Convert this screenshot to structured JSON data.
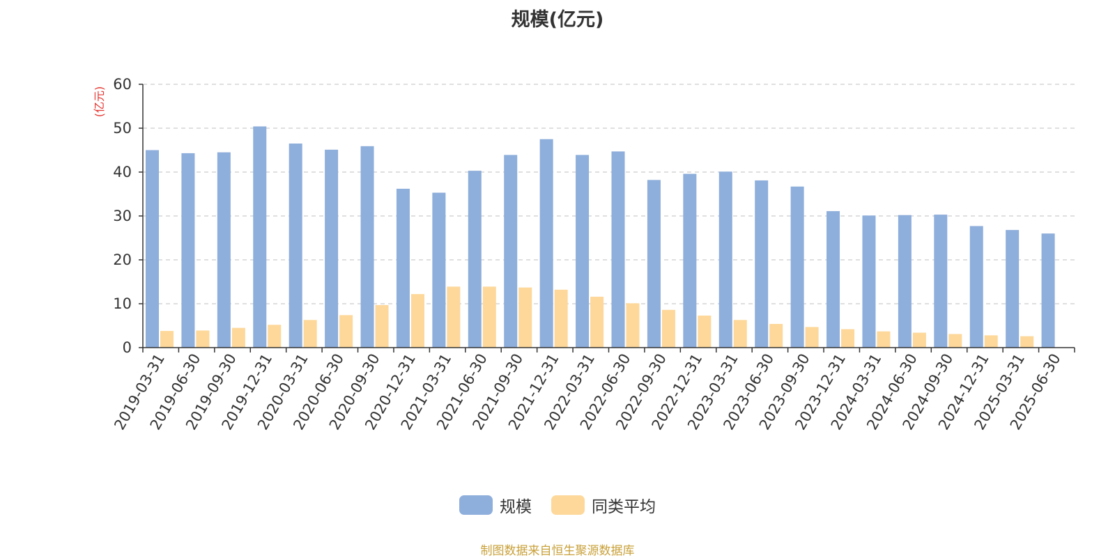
{
  "chart_data": {
    "type": "bar",
    "title": "规模(亿元)",
    "ylabel": "(亿元)",
    "xlabel": "",
    "ylim": [
      0,
      60
    ],
    "yticks": [
      0,
      10,
      20,
      30,
      40,
      50,
      60
    ],
    "grid": true,
    "legend_position": "bottom",
    "categories": [
      "2019-03-31",
      "2019-06-30",
      "2019-09-30",
      "2019-12-31",
      "2020-03-31",
      "2020-06-30",
      "2020-09-30",
      "2020-12-31",
      "2021-03-31",
      "2021-06-30",
      "2021-09-30",
      "2021-12-31",
      "2022-03-31",
      "2022-06-30",
      "2022-09-30",
      "2022-12-31",
      "2023-03-31",
      "2023-06-30",
      "2023-09-30",
      "2023-12-31",
      "2024-03-31",
      "2024-06-30",
      "2024-09-30",
      "2024-12-31",
      "2025-03-31",
      "2025-06-30"
    ],
    "series": [
      {
        "name": "规模",
        "color": "#8eaedb",
        "values": [
          45.0,
          44.3,
          44.5,
          50.4,
          46.5,
          45.1,
          45.9,
          36.2,
          35.3,
          40.3,
          43.9,
          47.5,
          43.9,
          44.7,
          38.2,
          39.6,
          40.1,
          38.1,
          36.7,
          31.1,
          30.1,
          30.2,
          30.3,
          27.7,
          26.8,
          26.0
        ]
      },
      {
        "name": "同类平均",
        "color": "#fdd89a",
        "values": [
          3.8,
          3.9,
          4.5,
          5.2,
          6.3,
          7.4,
          9.7,
          12.2,
          13.9,
          13.9,
          13.7,
          13.2,
          11.6,
          10.1,
          8.6,
          7.3,
          6.3,
          5.4,
          4.7,
          4.2,
          3.7,
          3.4,
          3.1,
          2.8,
          2.6,
          null
        ]
      }
    ]
  },
  "source_note": "制图数据来自恒生聚源数据库"
}
